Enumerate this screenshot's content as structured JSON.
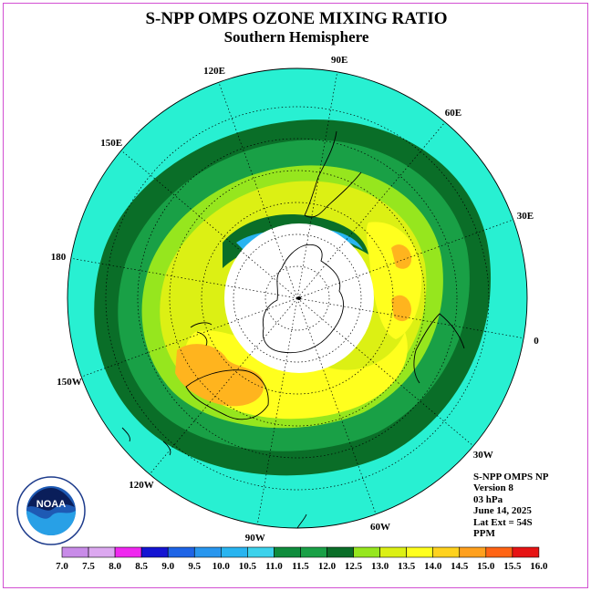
{
  "title": "S-NPP OMPS OZONE MIXING RATIO",
  "subtitle": "Southern Hemisphere",
  "longitude_labels": [
    {
      "text": "90W",
      "lon": -90
    },
    {
      "text": "60W",
      "lon": -60
    },
    {
      "text": "30W",
      "lon": -30
    },
    {
      "text": "0",
      "lon": 0
    },
    {
      "text": "30E",
      "lon": 30
    },
    {
      "text": "60E",
      "lon": 60
    },
    {
      "text": "90E",
      "lon": 90
    },
    {
      "text": "120E",
      "lon": 120
    },
    {
      "text": "150E",
      "lon": 150
    },
    {
      "text": "180",
      "lon": 180
    },
    {
      "text": "150W",
      "lon": -150
    },
    {
      "text": "120W",
      "lon": -120
    }
  ],
  "info": {
    "product": "S-NPP OMPS NP",
    "version": "Version 8",
    "level": "03 hPa",
    "date": "June 14, 2025",
    "lat_ext": "Lat Ext = 54S",
    "units": "PPM"
  },
  "logo": {
    "text": "NOAA"
  },
  "legend": {
    "bins": [
      {
        "from": "7.0",
        "color": "#c88be8"
      },
      {
        "from": "7.5",
        "color": "#dca8f0"
      },
      {
        "from": "8.0",
        "color": "#ef27ef"
      },
      {
        "from": "8.5",
        "color": "#1414d2"
      },
      {
        "from": "9.0",
        "color": "#1e64e6"
      },
      {
        "from": "9.5",
        "color": "#2896ee"
      },
      {
        "from": "10.0",
        "color": "#28b4f0"
      },
      {
        "from": "10.5",
        "color": "#3cd2ec"
      },
      {
        "from": "11.0",
        "color": "#0f8c3c"
      },
      {
        "from": "11.5",
        "color": "#19a046"
      },
      {
        "from": "12.0",
        "color": "#0a6e28"
      },
      {
        "from": "12.5",
        "color": "#96e61e"
      },
      {
        "from": "13.0",
        "color": "#dcf014"
      },
      {
        "from": "13.5",
        "color": "#ffff1e"
      },
      {
        "from": "14.0",
        "color": "#ffd21e"
      },
      {
        "from": "14.5",
        "color": "#ffa01e"
      },
      {
        "from": "15.0",
        "color": "#ff6414"
      },
      {
        "from": "15.5",
        "color": "#e61414"
      },
      {
        "from": "16.0",
        "color": "#8c6446"
      }
    ],
    "last_label": "16.0"
  },
  "colors": {
    "background": "#28f0d2",
    "dark_green": "#0a6e28",
    "mid_green": "#19a046",
    "light_green": "#96e61e",
    "yellow_green": "#dcf014",
    "yellow": "#ffff1e",
    "orange": "#ffb41e",
    "polar_night": "#ffffff",
    "blue_edge": "#28b4f0"
  }
}
